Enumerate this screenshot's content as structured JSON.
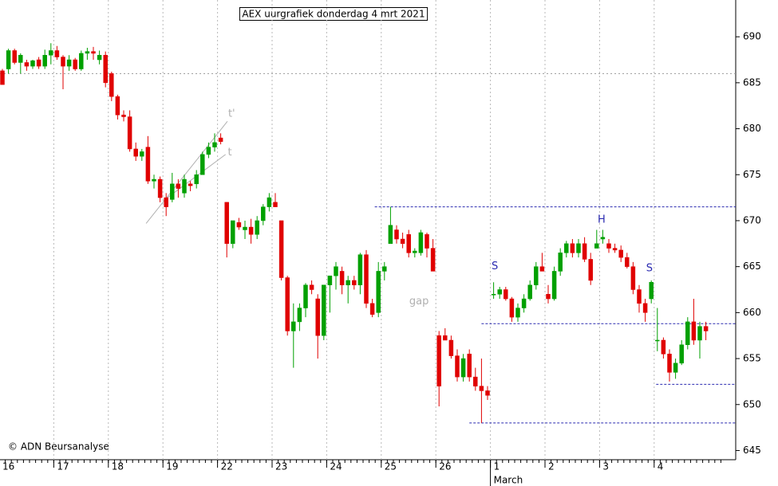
{
  "chart_data": {
    "type": "candlestick",
    "title": "AEX uurgrafiek donderdag 4 mrt 2021",
    "credit": "© ADN Beursanalyse",
    "colors": {
      "up": "#00a000",
      "down": "#e00000"
    },
    "ylim": [
      644,
      694
    ],
    "yticks": [
      645,
      650,
      655,
      660,
      665,
      670,
      675,
      680,
      685,
      690
    ],
    "x_labels": [
      {
        "value": 0,
        "label": "16"
      },
      {
        "value": 9,
        "label": "17"
      },
      {
        "value": 18,
        "label": "18"
      },
      {
        "value": 27,
        "label": "19"
      },
      {
        "value": 36,
        "label": "22"
      },
      {
        "value": 45,
        "label": "23"
      },
      {
        "value": 54,
        "label": "24"
      },
      {
        "value": 63,
        "label": "25"
      },
      {
        "value": 72,
        "label": "26"
      },
      {
        "value": 81,
        "label": "1"
      },
      {
        "value": 90,
        "label": "2"
      },
      {
        "value": 99,
        "label": "3"
      },
      {
        "value": 108,
        "label": "4"
      }
    ],
    "month_label": {
      "value": 81,
      "label": "March"
    },
    "reference_line": 686,
    "support_lines": [
      {
        "value": 671.5,
        "start": 61.4
      },
      {
        "value": 658.8,
        "start": 79
      },
      {
        "value": 652.2,
        "start": 107.8
      },
      {
        "value": 648,
        "start": 77
      }
    ],
    "trend_lines": [
      {
        "x": [
          23.7,
          37.1
        ],
        "y": [
          669.7,
          680.8
        ]
      },
      {
        "x": [
          26.6,
          36.8
        ],
        "y": [
          672.2,
          677.2
        ]
      }
    ],
    "annotations": [
      {
        "text": "S",
        "x": 81.2,
        "y": 665,
        "style": "ann"
      },
      {
        "text": "H",
        "x": 98.8,
        "y": 670.1,
        "style": "ann"
      },
      {
        "text": "S",
        "x": 106.7,
        "y": 664.8,
        "style": "ann"
      },
      {
        "text": "gap",
        "x": 68.7,
        "y": 661.2,
        "style": "gap"
      },
      {
        "text": "t'",
        "x": 37.8,
        "y": 681.6,
        "style": "tl"
      },
      {
        "text": "t",
        "x": 37.5,
        "y": 677.4,
        "style": "tl"
      }
    ],
    "candles": [
      {
        "o": 686.3,
        "h": 686.5,
        "l": 684.8,
        "c": 684.8
      },
      {
        "o": 686.5,
        "h": 688.7,
        "l": 686,
        "c": 688.5
      },
      {
        "o": 688.5,
        "h": 688.7,
        "l": 687,
        "c": 687.2
      },
      {
        "o": 687.2,
        "h": 688.2,
        "l": 686,
        "c": 688
      },
      {
        "o": 687.2,
        "h": 687.5,
        "l": 686.3,
        "c": 686.8
      },
      {
        "o": 686.8,
        "h": 687.5,
        "l": 686.5,
        "c": 687.4
      },
      {
        "o": 687.5,
        "h": 687.8,
        "l": 686.5,
        "c": 686.8
      },
      {
        "o": 686.8,
        "h": 688.6,
        "l": 686.5,
        "c": 688
      },
      {
        "o": 688,
        "h": 689.3,
        "l": 687,
        "c": 688.5
      },
      {
        "o": 688.5,
        "h": 689,
        "l": 687.5,
        "c": 687.8
      },
      {
        "o": 687.8,
        "h": 688,
        "l": 684.3,
        "c": 686.8
      },
      {
        "o": 686.8,
        "h": 688,
        "l": 686.3,
        "c": 687.5
      },
      {
        "o": 687.5,
        "h": 687.7,
        "l": 686.3,
        "c": 686.5
      },
      {
        "o": 686.5,
        "h": 688.5,
        "l": 686.3,
        "c": 688.2
      },
      {
        "o": 688.2,
        "h": 688.8,
        "l": 687.5,
        "c": 688.4
      },
      {
        "o": 688.4,
        "h": 688.9,
        "l": 687.5,
        "c": 688.2
      },
      {
        "o": 687.5,
        "h": 688.5,
        "l": 687,
        "c": 688
      },
      {
        "o": 688,
        "h": 688.4,
        "l": 684.5,
        "c": 685
      },
      {
        "o": 686,
        "h": 686.2,
        "l": 683,
        "c": 683.5
      },
      {
        "o": 683.5,
        "h": 683.7,
        "l": 681,
        "c": 681.5
      },
      {
        "o": 681.5,
        "h": 682,
        "l": 680.8,
        "c": 681.3
      },
      {
        "o": 681.3,
        "h": 682,
        "l": 677.5,
        "c": 677.8
      },
      {
        "o": 677.8,
        "h": 678.5,
        "l": 676.5,
        "c": 677
      },
      {
        "o": 677,
        "h": 677.8,
        "l": 676.5,
        "c": 677.5
      },
      {
        "o": 678,
        "h": 679.2,
        "l": 674,
        "c": 674.3
      },
      {
        "o": 674.3,
        "h": 675,
        "l": 673.5,
        "c": 674.5
      },
      {
        "o": 674.5,
        "h": 674.8,
        "l": 672,
        "c": 672.5
      },
      {
        "o": 672.5,
        "h": 673,
        "l": 670.5,
        "c": 671.5
      },
      {
        "o": 672.3,
        "h": 675.2,
        "l": 672,
        "c": 674
      },
      {
        "o": 674,
        "h": 674.5,
        "l": 672.5,
        "c": 673.5
      },
      {
        "o": 673,
        "h": 675,
        "l": 672.5,
        "c": 674.5
      },
      {
        "o": 674,
        "h": 674.3,
        "l": 673.2,
        "c": 673.8
      },
      {
        "o": 674,
        "h": 675.5,
        "l": 673.5,
        "c": 675
      },
      {
        "o": 675,
        "h": 677.5,
        "l": 675,
        "c": 677.2
      },
      {
        "o": 677.2,
        "h": 678.5,
        "l": 676.8,
        "c": 678
      },
      {
        "o": 678,
        "h": 679.5,
        "l": 677.5,
        "c": 678.5
      },
      {
        "o": 679,
        "h": 679.5,
        "l": 678.3,
        "c": 678.6
      },
      {
        "o": 672,
        "h": 672,
        "l": 666,
        "c": 667.5
      },
      {
        "o": 667.5,
        "h": 670,
        "l": 667,
        "c": 670
      },
      {
        "o": 669.8,
        "h": 670.3,
        "l": 669,
        "c": 669.3
      },
      {
        "o": 669,
        "h": 670,
        "l": 668,
        "c": 669.3
      },
      {
        "o": 669.3,
        "h": 670.2,
        "l": 667.5,
        "c": 668.5
      },
      {
        "o": 668.5,
        "h": 670.5,
        "l": 668,
        "c": 670
      },
      {
        "o": 670,
        "h": 671.8,
        "l": 669.5,
        "c": 671.5
      },
      {
        "o": 671.5,
        "h": 673,
        "l": 671,
        "c": 672.5
      },
      {
        "o": 672,
        "h": 673,
        "l": 671.5,
        "c": 671.5
      },
      {
        "o": 670,
        "h": 670,
        "l": 663.5,
        "c": 663.8
      },
      {
        "o": 663.8,
        "h": 664,
        "l": 657.5,
        "c": 658
      },
      {
        "o": 658,
        "h": 661,
        "l": 654,
        "c": 659
      },
      {
        "o": 659,
        "h": 661,
        "l": 658,
        "c": 660.5
      },
      {
        "o": 660.5,
        "h": 663.2,
        "l": 659.5,
        "c": 663
      },
      {
        "o": 663,
        "h": 663.5,
        "l": 662,
        "c": 662.5
      },
      {
        "o": 661.5,
        "h": 662,
        "l": 655,
        "c": 657.5
      },
      {
        "o": 657.5,
        "h": 663,
        "l": 657,
        "c": 663
      },
      {
        "o": 663,
        "h": 664,
        "l": 660,
        "c": 664
      },
      {
        "o": 664,
        "h": 665.5,
        "l": 662.5,
        "c": 665
      },
      {
        "o": 664.5,
        "h": 665,
        "l": 662,
        "c": 663
      },
      {
        "o": 663,
        "h": 664,
        "l": 661,
        "c": 663.5
      },
      {
        "o": 663.5,
        "h": 664,
        "l": 662.5,
        "c": 663
      },
      {
        "o": 663,
        "h": 666.5,
        "l": 662,
        "c": 666.3
      },
      {
        "o": 666.3,
        "h": 666.8,
        "l": 660.5,
        "c": 661
      },
      {
        "o": 661,
        "h": 661.5,
        "l": 659.5,
        "c": 659.8
      },
      {
        "o": 660,
        "h": 665.5,
        "l": 659.5,
        "c": 664.5
      },
      {
        "o": 664.5,
        "h": 665.5,
        "l": 663.5,
        "c": 665
      },
      {
        "o": 667.5,
        "h": 671.5,
        "l": 667.5,
        "c": 669.5
      },
      {
        "o": 669,
        "h": 669.5,
        "l": 667.5,
        "c": 668
      },
      {
        "o": 668,
        "h": 668.7,
        "l": 667,
        "c": 667.5
      },
      {
        "o": 668.5,
        "h": 669,
        "l": 666,
        "c": 666.5
      },
      {
        "o": 666.5,
        "h": 667,
        "l": 666,
        "c": 666.7
      },
      {
        "o": 666.5,
        "h": 669,
        "l": 666.2,
        "c": 668.7
      },
      {
        "o": 668.5,
        "h": 668.7,
        "l": 666,
        "c": 667
      },
      {
        "o": 667,
        "h": 668,
        "l": 664.5,
        "c": 664.5
      },
      {
        "o": 657.5,
        "h": 658,
        "l": 649.8,
        "c": 652
      },
      {
        "o": 657.5,
        "h": 658.3,
        "l": 657,
        "c": 657
      },
      {
        "o": 657,
        "h": 657.5,
        "l": 655,
        "c": 655.3
      },
      {
        "o": 655.3,
        "h": 656,
        "l": 652.5,
        "c": 653
      },
      {
        "o": 653,
        "h": 655.5,
        "l": 652.5,
        "c": 655
      },
      {
        "o": 655.5,
        "h": 656,
        "l": 652.5,
        "c": 653
      },
      {
        "o": 653,
        "h": 654,
        "l": 651.5,
        "c": 652
      },
      {
        "o": 652,
        "h": 655,
        "l": 648,
        "c": 651.5
      },
      {
        "o": 651.5,
        "h": 652,
        "l": 650.5,
        "c": 651
      },
      {
        "o": 662,
        "h": 663.3,
        "l": 661.5,
        "c": 662
      },
      {
        "o": 662,
        "h": 662.8,
        "l": 661.5,
        "c": 662.5
      },
      {
        "o": 662.5,
        "h": 662.8,
        "l": 661.3,
        "c": 661.5
      },
      {
        "o": 661.5,
        "h": 661.7,
        "l": 659,
        "c": 659.5
      },
      {
        "o": 659.5,
        "h": 661,
        "l": 659,
        "c": 660.5
      },
      {
        "o": 660.5,
        "h": 662,
        "l": 660,
        "c": 661.5
      },
      {
        "o": 661.5,
        "h": 663.5,
        "l": 661.3,
        "c": 663
      },
      {
        "o": 663,
        "h": 665.5,
        "l": 662.5,
        "c": 665
      },
      {
        "o": 665,
        "h": 666.5,
        "l": 664.5,
        "c": 664.5
      },
      {
        "o": 662,
        "h": 663,
        "l": 661,
        "c": 661.5
      },
      {
        "o": 661.5,
        "h": 665,
        "l": 661.3,
        "c": 664.5
      },
      {
        "o": 664.5,
        "h": 667,
        "l": 664,
        "c": 666.5
      },
      {
        "o": 666.5,
        "h": 667.8,
        "l": 666,
        "c": 667.5
      },
      {
        "o": 667.5,
        "h": 668,
        "l": 666,
        "c": 666.5
      },
      {
        "o": 666.5,
        "h": 668,
        "l": 666,
        "c": 667.5
      },
      {
        "o": 667.5,
        "h": 668.2,
        "l": 665.5,
        "c": 665.8
      },
      {
        "o": 665.8,
        "h": 666.5,
        "l": 663,
        "c": 663.5
      },
      {
        "o": 667,
        "h": 669,
        "l": 667,
        "c": 667.5
      },
      {
        "o": 668,
        "h": 669,
        "l": 667.5,
        "c": 668.2
      },
      {
        "o": 667.5,
        "h": 668,
        "l": 666.5,
        "c": 667
      },
      {
        "o": 667,
        "h": 667.5,
        "l": 666.5,
        "c": 666.8
      },
      {
        "o": 666.8,
        "h": 667.3,
        "l": 665.5,
        "c": 666
      },
      {
        "o": 666,
        "h": 666.5,
        "l": 664.8,
        "c": 665
      },
      {
        "o": 665,
        "h": 665.5,
        "l": 662,
        "c": 662.5
      },
      {
        "o": 662.5,
        "h": 663,
        "l": 660,
        "c": 661
      },
      {
        "o": 661,
        "h": 661.5,
        "l": 659,
        "c": 660
      },
      {
        "o": 661.5,
        "h": 663.5,
        "l": 661,
        "c": 663.3
      },
      {
        "o": 657,
        "h": 660.5,
        "l": 655.8,
        "c": 657
      },
      {
        "o": 657,
        "h": 657.3,
        "l": 655,
        "c": 655.5
      },
      {
        "o": 655.5,
        "h": 656,
        "l": 652.5,
        "c": 653.5
      },
      {
        "o": 653.5,
        "h": 655,
        "l": 652.8,
        "c": 654.5
      },
      {
        "o": 654.5,
        "h": 657,
        "l": 654.3,
        "c": 656.5
      },
      {
        "o": 656.5,
        "h": 659.5,
        "l": 656,
        "c": 659
      },
      {
        "o": 659,
        "h": 661.5,
        "l": 656.5,
        "c": 657
      },
      {
        "o": 657,
        "h": 659,
        "l": 655,
        "c": 658.5
      },
      {
        "o": 658.5,
        "h": 659,
        "l": 657,
        "c": 658
      }
    ]
  }
}
